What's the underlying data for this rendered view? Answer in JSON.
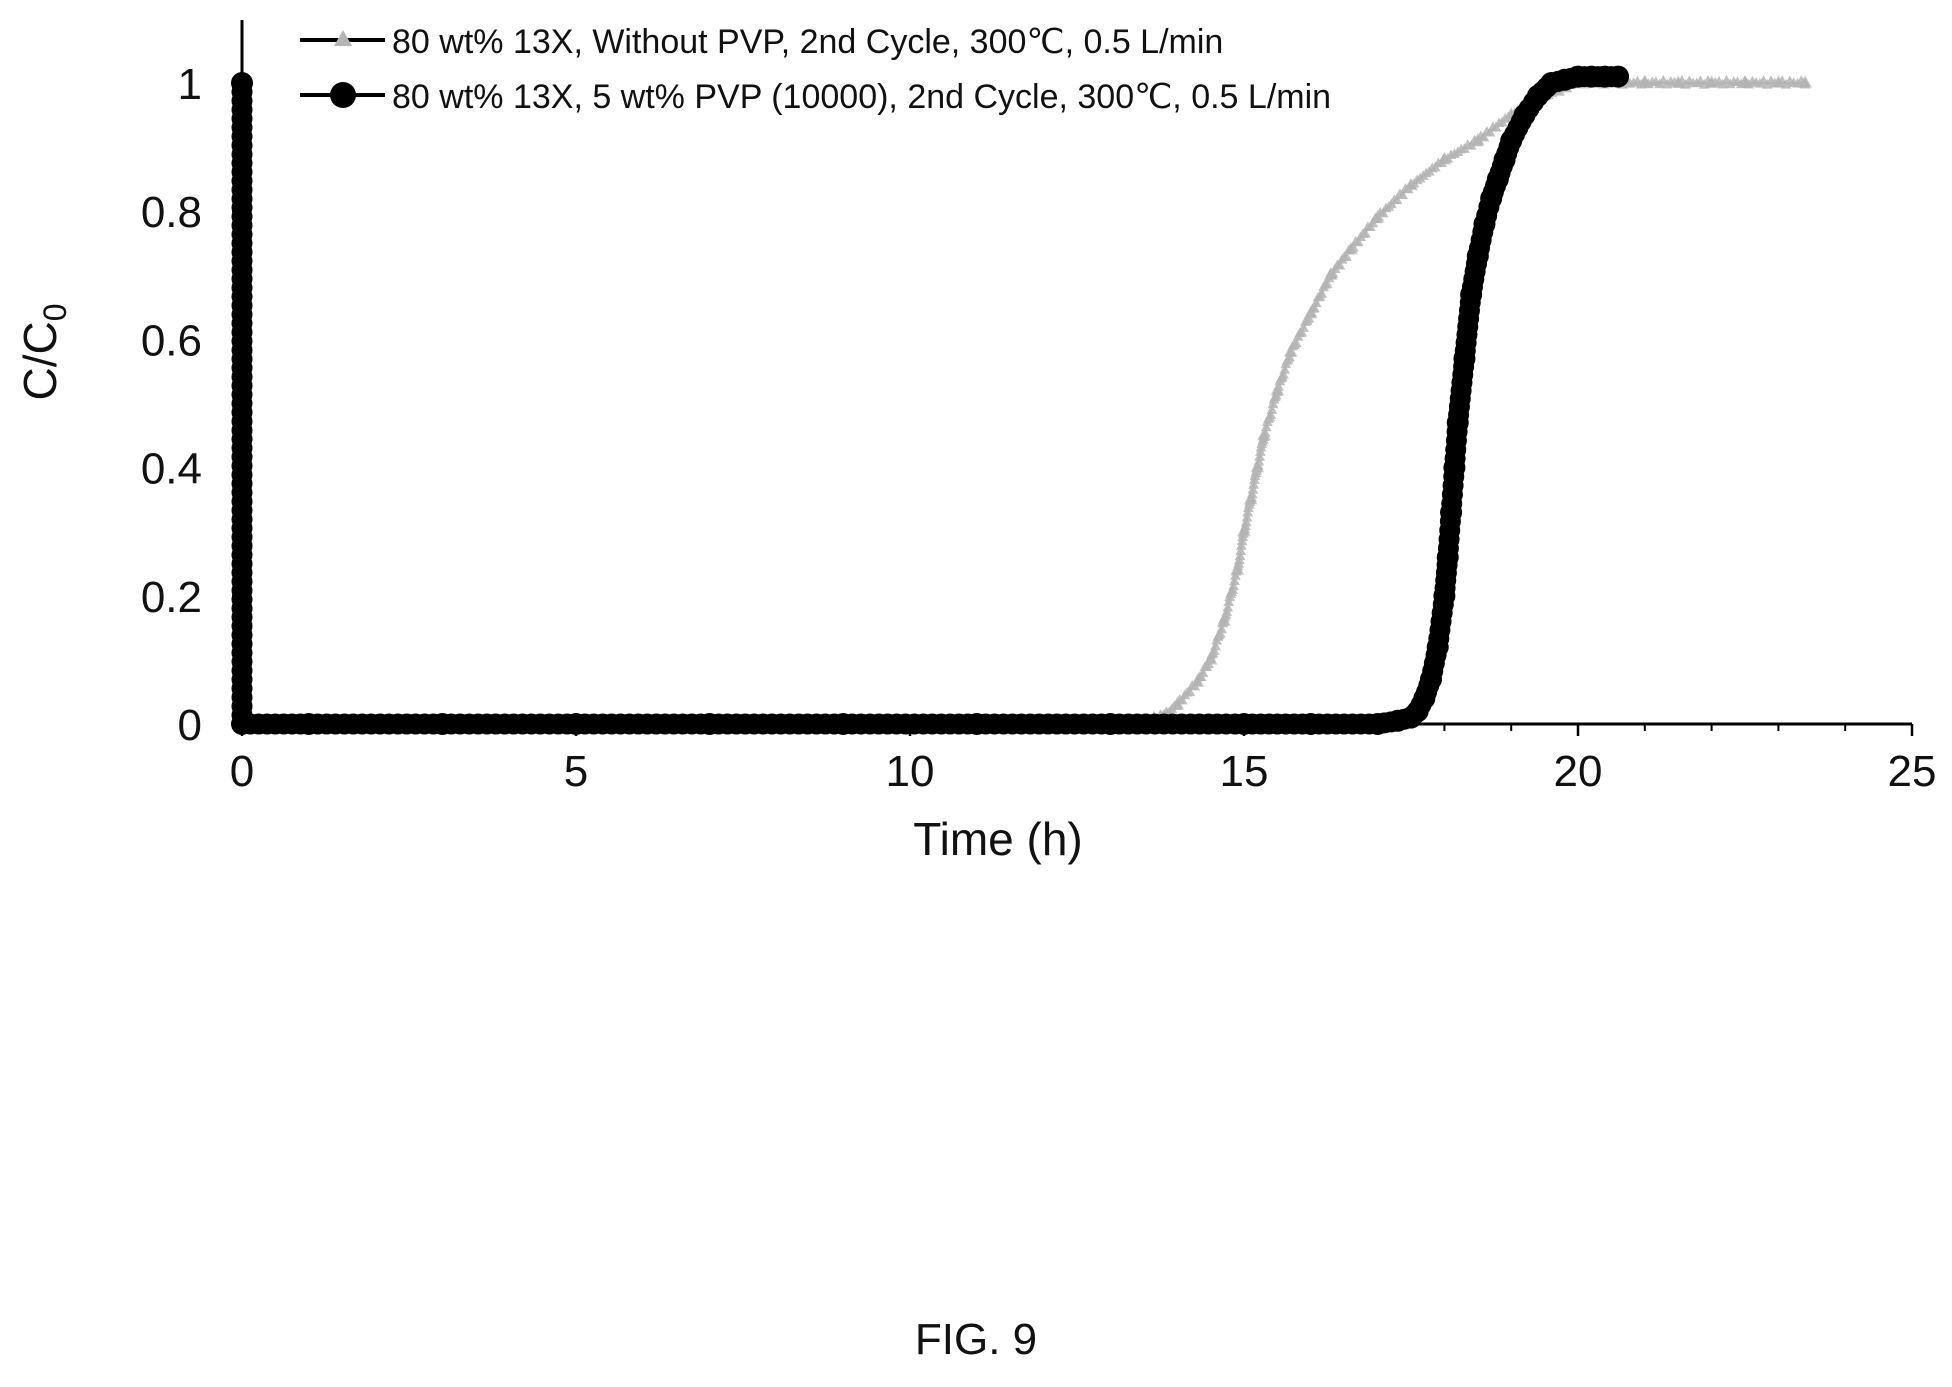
{
  "chart_data": {
    "type": "scatter",
    "title": "",
    "xlabel": "Time (h)",
    "ylabel": {
      "main": "C/C",
      "subscript": "0"
    },
    "xlim": [
      0,
      25
    ],
    "ylim": [
      0,
      1
    ],
    "xticks": [
      0,
      5,
      10,
      15,
      20,
      25
    ],
    "xtick_labels": [
      "0",
      "5",
      "10",
      "15",
      "20",
      "25"
    ],
    "yticks": [
      0,
      0.2,
      0.4,
      0.6,
      0.8,
      1
    ],
    "ytick_labels": [
      "0",
      "0.2",
      "0.4",
      "0.6",
      "0.8",
      "1"
    ],
    "grid": false,
    "legend_position": "top",
    "series": [
      {
        "name": "80 wt% 13X, Without PVP, 2nd Cycle, 300℃, 0.5 L/min",
        "marker": "triangle",
        "color": "#b4b4b4",
        "x": [
          0,
          1,
          3,
          5,
          7,
          9,
          10,
          11,
          12,
          13,
          13.5,
          13.8,
          14.0,
          14.3,
          14.5,
          14.7,
          14.9,
          15.0,
          15.1,
          15.2,
          15.3,
          15.5,
          15.7,
          16.0,
          16.3,
          16.6,
          17.0,
          17.5,
          18.0,
          18.5,
          19.0,
          19.5,
          20.0,
          20.5,
          21.0,
          21.5,
          22.0,
          22.5,
          23.0,
          23.4
        ],
        "y": [
          0.0,
          0.0,
          0.0,
          0.0,
          0.0,
          0.0,
          0.0,
          0.0,
          0.0,
          0.0,
          0.005,
          0.012,
          0.03,
          0.065,
          0.1,
          0.16,
          0.24,
          0.3,
          0.35,
          0.4,
          0.45,
          0.52,
          0.58,
          0.64,
          0.7,
          0.74,
          0.79,
          0.84,
          0.88,
          0.91,
          0.95,
          0.98,
          1.0,
          1.0,
          1.0,
          1.0,
          1.0,
          1.0,
          1.0,
          1.0
        ]
      },
      {
        "name": "80 wt% 13X, 5 wt% PVP (10000), 2nd Cycle, 300℃, 0.5 L/min",
        "marker": "circle",
        "color": "#000000",
        "x": [
          0,
          0,
          1,
          3,
          5,
          7,
          9,
          11,
          13,
          15,
          16,
          17,
          17.3,
          17.5,
          17.6,
          17.7,
          17.8,
          17.9,
          18.0,
          18.05,
          18.1,
          18.15,
          18.2,
          18.3,
          18.4,
          18.5,
          18.6,
          18.7,
          18.8,
          18.9,
          19.0,
          19.2,
          19.4,
          19.6,
          19.8,
          20.0,
          20.2,
          20.4,
          20.6
        ],
        "y": [
          1.0,
          0.0,
          0.0,
          0.0,
          0.0,
          0.0,
          0.0,
          0.0,
          0.0,
          0.0,
          0.0,
          0.0,
          0.005,
          0.01,
          0.02,
          0.04,
          0.07,
          0.12,
          0.2,
          0.26,
          0.33,
          0.4,
          0.47,
          0.57,
          0.67,
          0.73,
          0.78,
          0.82,
          0.85,
          0.88,
          0.91,
          0.95,
          0.98,
          1.0,
          1.005,
          1.01,
          1.01,
          1.01,
          1.01
        ]
      }
    ]
  },
  "caption": "FIG. 9"
}
